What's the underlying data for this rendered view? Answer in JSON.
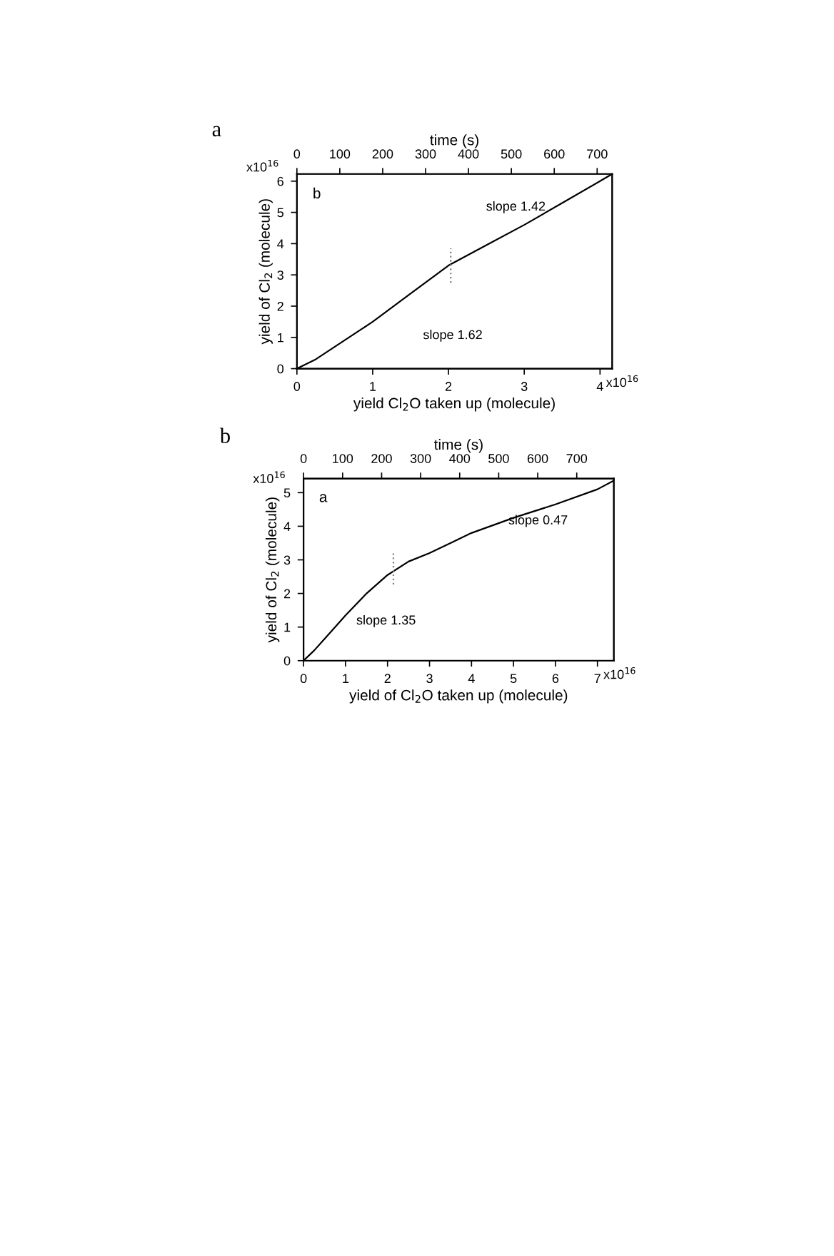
{
  "chart_data": [
    {
      "type": "line",
      "title": "a",
      "xlabel": "yield Cl$_{2}$O taken up (molecule)",
      "ylabel": "yield of Cl$_{2}$ (molecule)",
      "x2label": "time (s)",
      "xlim": [
        0,
        4.16
      ],
      "xticks": [
        0,
        1,
        2,
        3,
        4
      ],
      "ylim": [
        0,
        6.23
      ],
      "yticks": [
        0,
        1,
        2,
        3,
        4,
        5,
        6
      ],
      "x2lim": [
        0,
        735
      ],
      "x2ticks": [
        0,
        100,
        200,
        300,
        400,
        500,
        600,
        700
      ],
      "grid": false,
      "legend": false,
      "marker": "none",
      "line_style": "solid",
      "series": [
        {
          "color": "#000000",
          "x": [
            0,
            0.25,
            0.5,
            0.75,
            1,
            1.5,
            2,
            2.5,
            3,
            3.5,
            4,
            4.16
          ],
          "values": [
            0,
            0.3,
            0.7,
            1.1,
            1.5,
            2.4,
            3.3,
            3.95,
            4.6,
            5.3,
            6.0,
            6.23
          ]
        },
        {
          "color": "#808080",
          "line_style": "dotted",
          "x": [
            2.03,
            2.03
          ],
          "values": [
            2.75,
            3.85
          ]
        }
      ],
      "annotations": [
        "b",
        "slope 1.62",
        "slope 1.42",
        "x10$^{16}$",
        "x10$^{16}$"
      ]
    },
    {
      "type": "line",
      "title": "b",
      "xlabel": "yield of Cl$_{2}$O taken up (molecule)",
      "ylabel": "yield of Cl$_{2}$ (molecule)",
      "x2label": "time (s)",
      "xlim": [
        0,
        7.39
      ],
      "xticks": [
        0,
        1,
        2,
        3,
        4,
        5,
        6,
        7
      ],
      "ylim": [
        0,
        5.42
      ],
      "yticks": [
        0,
        1,
        2,
        3,
        4,
        5
      ],
      "x2lim": [
        0,
        795
      ],
      "x2ticks": [
        0,
        100,
        200,
        300,
        400,
        500,
        600,
        700
      ],
      "grid": false,
      "legend": false,
      "marker": "none",
      "line_style": "solid",
      "series": [
        {
          "color": "#000000",
          "x": [
            0,
            0.25,
            0.5,
            1,
            1.5,
            2,
            2.5,
            3,
            3.5,
            4,
            5,
            6,
            7,
            7.39
          ],
          "values": [
            0,
            0.3,
            0.65,
            1.35,
            2.0,
            2.55,
            2.95,
            3.2,
            3.5,
            3.8,
            4.25,
            4.65,
            5.1,
            5.36
          ]
        },
        {
          "color": "#808080",
          "line_style": "dotted",
          "x": [
            2.14,
            2.14
          ],
          "values": [
            2.27,
            3.26
          ]
        }
      ],
      "annotations": [
        "a",
        "slope 1.35",
        "slope 0.47",
        "x10$^{16}$",
        "x10$^{16}$"
      ]
    }
  ]
}
